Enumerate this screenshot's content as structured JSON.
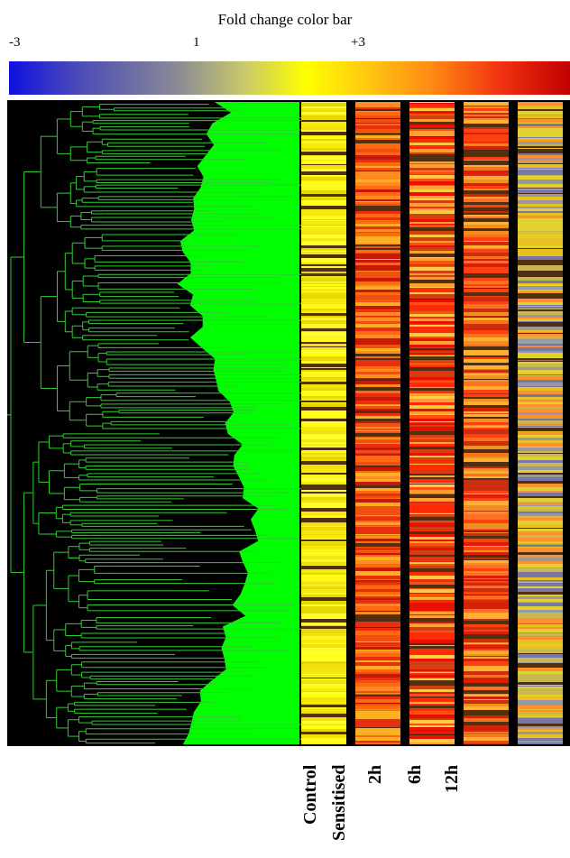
{
  "chart_data": {
    "type": "heatmap",
    "title": "Fold change color bar",
    "colorbar": {
      "ticks": [
        "-3",
        "1",
        "+3"
      ],
      "colors": [
        "#1010e0",
        "#8a8a96",
        "#ffff00",
        "#ff8c14",
        "#c00000"
      ]
    },
    "columns": [
      "Control",
      "Sensitised",
      "2h",
      "6h",
      "12h"
    ],
    "dendrogram_color": "#33cc33",
    "dendrogram_background": "#00ff00",
    "column_bands": [
      {
        "name": "Control",
        "band_colors": [
          "#ffff10",
          "#f2e010",
          "#fff520",
          "#e8d800",
          "#ffff30",
          "#f5ea10"
        ]
      },
      {
        "name": "Sensitised",
        "band_colors": [
          "#e83010",
          "#ff6a10",
          "#c81808",
          "#ffb020",
          "#f05010",
          "#ff8c20"
        ]
      },
      {
        "name": "2h",
        "band_colors": [
          "#ff2a08",
          "#ff5010",
          "#e81000",
          "#ffa030",
          "#ffcc40",
          "#d04010"
        ]
      },
      {
        "name": "6h",
        "band_colors": [
          "#ff4010",
          "#ff7020",
          "#d82008",
          "#ffb030",
          "#f09020",
          "#c83010"
        ]
      },
      {
        "name": "12h",
        "band_colors": [
          "#c8b850",
          "#e8c020",
          "#9898a0",
          "#ff9030",
          "#7878a8",
          "#e0d030"
        ]
      }
    ]
  }
}
